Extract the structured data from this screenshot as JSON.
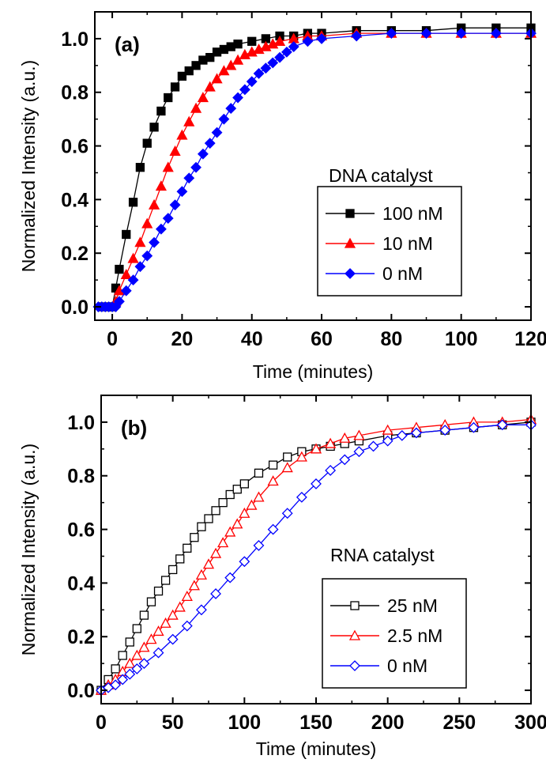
{
  "chart_data": [
    {
      "type": "line",
      "panel_label": "(a)",
      "xlabel": "Time (minutes)",
      "ylabel": "Normalized Intensity (a.u.)",
      "xlim": [
        -5,
        120
      ],
      "ylim": [
        -0.05,
        1.1
      ],
      "x_ticks": [
        0,
        20,
        40,
        60,
        80,
        100,
        120
      ],
      "y_ticks": [
        0.0,
        0.2,
        0.4,
        0.6,
        0.8,
        1.0
      ],
      "x_tick_labels": [
        "0",
        "20",
        "40",
        "60",
        "80",
        "100",
        "120"
      ],
      "y_tick_labels": [
        "0.0",
        "0.2",
        "0.4",
        "0.6",
        "0.8",
        "1.0"
      ],
      "legend": {
        "title": "DNA catalyst",
        "placement": "center-right"
      },
      "series": [
        {
          "name": "100 nM",
          "color": "#000000",
          "marker": "filled-square",
          "x": [
            -3,
            -1,
            0,
            1,
            2,
            4,
            6,
            8,
            10,
            12,
            14,
            16,
            18,
            20,
            22,
            24,
            26,
            28,
            30,
            32,
            34,
            36,
            40,
            44,
            48,
            52,
            56,
            60,
            70,
            80,
            90,
            100,
            110,
            120
          ],
          "y": [
            0.0,
            0.0,
            0.0,
            0.07,
            0.14,
            0.27,
            0.39,
            0.52,
            0.61,
            0.67,
            0.73,
            0.78,
            0.82,
            0.86,
            0.88,
            0.9,
            0.92,
            0.93,
            0.95,
            0.96,
            0.97,
            0.98,
            0.99,
            1.0,
            1.01,
            1.01,
            1.02,
            1.02,
            1.03,
            1.03,
            1.03,
            1.04,
            1.04,
            1.04
          ]
        },
        {
          "name": "10 nM",
          "color": "#ff0000",
          "marker": "filled-triangle",
          "x": [
            1,
            2,
            4,
            6,
            8,
            10,
            12,
            14,
            16,
            18,
            20,
            22,
            24,
            26,
            28,
            30,
            32,
            34,
            36,
            38,
            40,
            42,
            44,
            46,
            48,
            52,
            56,
            60,
            70,
            80,
            90,
            100,
            110,
            120
          ],
          "y": [
            0.02,
            0.06,
            0.12,
            0.18,
            0.24,
            0.31,
            0.38,
            0.45,
            0.52,
            0.58,
            0.64,
            0.69,
            0.74,
            0.78,
            0.82,
            0.85,
            0.88,
            0.9,
            0.92,
            0.94,
            0.95,
            0.96,
            0.97,
            0.98,
            0.99,
            1.0,
            1.01,
            1.01,
            1.02,
            1.02,
            1.02,
            1.02,
            1.02,
            1.02
          ]
        },
        {
          "name": "0 nM",
          "color": "#0000ff",
          "marker": "filled-diamond",
          "x": [
            -4,
            -3,
            -2,
            -1,
            0,
            1,
            2,
            4,
            6,
            8,
            10,
            12,
            14,
            16,
            18,
            20,
            22,
            24,
            26,
            28,
            30,
            32,
            34,
            36,
            38,
            40,
            42,
            44,
            46,
            48,
            50,
            52,
            56,
            60,
            70,
            80,
            90,
            100,
            110,
            120
          ],
          "y": [
            0.0,
            0.0,
            0.0,
            0.0,
            0.0,
            0.0,
            0.02,
            0.06,
            0.1,
            0.15,
            0.19,
            0.24,
            0.29,
            0.33,
            0.38,
            0.43,
            0.48,
            0.52,
            0.57,
            0.61,
            0.65,
            0.7,
            0.74,
            0.78,
            0.81,
            0.84,
            0.87,
            0.89,
            0.91,
            0.93,
            0.95,
            0.97,
            0.99,
            1.0,
            1.01,
            1.02,
            1.02,
            1.02,
            1.02,
            1.02
          ]
        }
      ]
    },
    {
      "type": "line",
      "panel_label": "(b)",
      "xlabel": "Time (minutes)",
      "ylabel": "Normalized Intensity (a.u.)",
      "xlim": [
        0,
        300
      ],
      "ylim": [
        -0.05,
        1.1
      ],
      "x_ticks": [
        0,
        50,
        100,
        150,
        200,
        250,
        300
      ],
      "y_ticks": [
        0.0,
        0.2,
        0.4,
        0.6,
        0.8,
        1.0
      ],
      "x_tick_labels": [
        "0",
        "50",
        "100",
        "150",
        "200",
        "250",
        "300"
      ],
      "y_tick_labels": [
        "0.0",
        "0.2",
        "0.4",
        "0.6",
        "0.8",
        "1.0"
      ],
      "legend": {
        "title": "RNA catalyst",
        "placement": "bottom-right"
      },
      "series": [
        {
          "name": "25 nM",
          "color": "#000000",
          "marker": "open-square",
          "x": [
            0,
            5,
            10,
            15,
            20,
            25,
            30,
            35,
            40,
            45,
            50,
            55,
            60,
            65,
            70,
            75,
            80,
            85,
            90,
            95,
            100,
            110,
            120,
            130,
            140,
            150,
            160,
            170,
            180,
            200,
            220,
            240,
            260,
            280,
            300
          ],
          "y": [
            0.0,
            0.04,
            0.08,
            0.13,
            0.18,
            0.23,
            0.28,
            0.33,
            0.37,
            0.41,
            0.45,
            0.49,
            0.53,
            0.57,
            0.61,
            0.64,
            0.67,
            0.7,
            0.73,
            0.75,
            0.77,
            0.81,
            0.84,
            0.87,
            0.89,
            0.9,
            0.91,
            0.92,
            0.93,
            0.95,
            0.96,
            0.97,
            0.98,
            0.99,
            1.0
          ]
        },
        {
          "name": "2.5 nM",
          "color": "#ff0000",
          "marker": "open-triangle",
          "x": [
            0,
            5,
            10,
            15,
            20,
            25,
            30,
            35,
            40,
            45,
            50,
            55,
            60,
            65,
            70,
            75,
            80,
            85,
            90,
            95,
            100,
            105,
            110,
            120,
            130,
            140,
            150,
            160,
            170,
            180,
            200,
            220,
            240,
            260,
            280,
            300
          ],
          "y": [
            0.0,
            0.02,
            0.04,
            0.07,
            0.1,
            0.13,
            0.16,
            0.19,
            0.22,
            0.25,
            0.28,
            0.31,
            0.35,
            0.39,
            0.43,
            0.47,
            0.51,
            0.55,
            0.59,
            0.62,
            0.66,
            0.69,
            0.72,
            0.78,
            0.83,
            0.87,
            0.9,
            0.92,
            0.94,
            0.95,
            0.97,
            0.98,
            0.99,
            1.0,
            1.0,
            1.01
          ]
        },
        {
          "name": "0 nM",
          "color": "#0000ff",
          "marker": "open-diamond",
          "x": [
            0,
            5,
            10,
            15,
            20,
            25,
            30,
            40,
            50,
            60,
            70,
            80,
            90,
            100,
            110,
            120,
            130,
            140,
            150,
            160,
            170,
            180,
            190,
            200,
            210,
            220,
            240,
            260,
            280,
            300
          ],
          "y": [
            0.0,
            0.01,
            0.02,
            0.04,
            0.06,
            0.08,
            0.1,
            0.14,
            0.19,
            0.24,
            0.3,
            0.36,
            0.42,
            0.48,
            0.54,
            0.6,
            0.66,
            0.72,
            0.77,
            0.82,
            0.86,
            0.89,
            0.91,
            0.93,
            0.95,
            0.96,
            0.97,
            0.98,
            0.99,
            0.99
          ]
        }
      ]
    }
  ]
}
